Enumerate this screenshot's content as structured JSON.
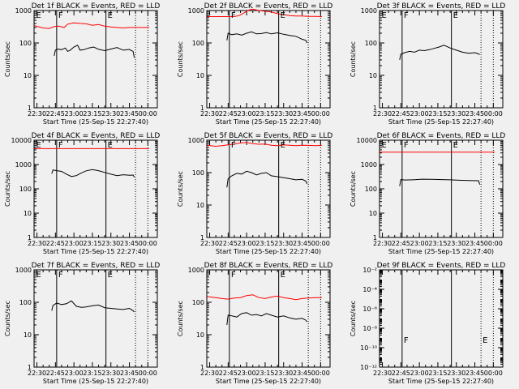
{
  "chart_data": [
    {
      "type": "line",
      "title": "Det 1f BLACK = Events, RED = LLD",
      "xlabel": "Start Time (25-Sep-15 22:27:40)",
      "ylabel": "Counts/sec",
      "x_ticks": [
        "22:30",
        "22:45",
        "23:00",
        "23:15",
        "23:30",
        "23:45",
        "00:00"
      ],
      "xlim": [
        -2.33,
        97.67
      ],
      "yscale": "log",
      "ylim": [
        1,
        1000
      ],
      "y_ticks": [
        {
          "v": 1,
          "t": "1"
        },
        {
          "v": 10,
          "t": "10"
        },
        {
          "v": 100,
          "t": "100"
        },
        {
          "v": 1000,
          "t": "1000"
        }
      ],
      "markers": [
        {
          "x": -2,
          "label": "E"
        },
        {
          "x": 16,
          "label": "F"
        },
        {
          "x": 56,
          "label": "E"
        }
      ],
      "dotted_lines": [
        80,
        90
      ],
      "series": [
        {
          "color": "#ff0000",
          "x": [
            -2,
            5,
            10,
            14,
            18,
            22,
            25,
            30,
            35,
            40,
            45,
            50,
            55,
            60,
            65,
            70,
            75,
            80,
            86,
            91
          ],
          "y": [
            340,
            290,
            280,
            320,
            330,
            300,
            380,
            420,
            400,
            390,
            350,
            370,
            330,
            310,
            300,
            290,
            300,
            300,
            300,
            300
          ]
        },
        {
          "color": "#000000",
          "x": [
            14,
            15,
            17,
            20,
            23,
            25,
            27,
            30,
            33,
            35,
            38,
            42,
            46,
            50,
            55,
            60,
            65,
            70,
            75,
            78,
            79
          ],
          "y": [
            40,
            60,
            65,
            62,
            70,
            55,
            60,
            75,
            85,
            60,
            62,
            70,
            75,
            64,
            58,
            65,
            72,
            60,
            63,
            55,
            35
          ]
        }
      ]
    },
    {
      "type": "line",
      "title": "Det 2f BLACK = Events, RED = LLD",
      "xlabel": "Start Time (25-Sep-15 22:27:40)",
      "ylabel": "Counts/sec",
      "x_ticks": [
        "22:30",
        "22:45",
        "23:00",
        "23:15",
        "23:30",
        "23:45",
        "00:00"
      ],
      "xlim": [
        -2.33,
        97.67
      ],
      "yscale": "log",
      "ylim": [
        1,
        1000
      ],
      "y_ticks": [
        {
          "v": 1,
          "t": "1"
        },
        {
          "v": 10,
          "t": "10"
        },
        {
          "v": 100,
          "t": "100"
        },
        {
          "v": 1000,
          "t": "1000"
        }
      ],
      "markers": [
        {
          "x": 16,
          "label": "F"
        },
        {
          "x": 56,
          "label": "E"
        }
      ],
      "dotted_lines": [
        80,
        90
      ],
      "series": [
        {
          "color": "#ff0000",
          "x": [
            -2,
            5,
            12,
            20,
            24,
            28,
            32,
            35,
            40,
            45,
            50,
            55,
            60,
            65,
            70,
            75,
            80,
            86,
            91
          ],
          "y": [
            650,
            650,
            650,
            650,
            700,
            850,
            1050,
            1100,
            1000,
            950,
            900,
            800,
            750,
            700,
            680,
            680,
            660,
            660,
            650
          ]
        },
        {
          "color": "#000000",
          "x": [
            14,
            15,
            18,
            22,
            26,
            30,
            34,
            38,
            42,
            46,
            50,
            55,
            60,
            65,
            70,
            75,
            78,
            79
          ],
          "y": [
            120,
            200,
            180,
            190,
            175,
            200,
            220,
            190,
            195,
            210,
            190,
            205,
            185,
            170,
            160,
            130,
            120,
            100
          ]
        }
      ]
    },
    {
      "type": "line",
      "title": "Det 3f BLACK = Events, RED = LLD",
      "xlabel": "Start Time (25-Sep-15 22:27:40)",
      "ylabel": "Counts/sec",
      "x_ticks": [
        "22:30",
        "22:45",
        "23:00",
        "23:15",
        "23:30",
        "23:45",
        "00:00"
      ],
      "xlim": [
        -2.33,
        97.67
      ],
      "yscale": "log",
      "ylim": [
        1,
        1000
      ],
      "y_ticks": [
        {
          "v": 1,
          "t": "1"
        },
        {
          "v": 10,
          "t": "10"
        },
        {
          "v": 100,
          "t": "100"
        },
        {
          "v": 1000,
          "t": "1000"
        }
      ],
      "markers": [
        {
          "x": -2,
          "label": "E"
        },
        {
          "x": 16,
          "label": "F"
        },
        {
          "x": 56,
          "label": "E"
        }
      ],
      "dotted_lines": [
        80,
        90
      ],
      "series": [
        {
          "color": "#000000",
          "x": [
            14,
            15,
            18,
            22,
            26,
            30,
            34,
            38,
            42,
            46,
            50,
            55,
            60,
            65,
            70,
            75,
            78,
            79
          ],
          "y": [
            30,
            45,
            50,
            55,
            52,
            60,
            58,
            62,
            68,
            75,
            85,
            70,
            60,
            52,
            48,
            50,
            46,
            44
          ]
        }
      ]
    },
    {
      "type": "line",
      "title": "Det 4f BLACK = Events, RED = LLD",
      "xlabel": "Start Time (25-Sep-15 22:27:40)",
      "ylabel": "Counts/sec",
      "x_ticks": [
        "22:30",
        "22:45",
        "23:00",
        "23:15",
        "23:30",
        "23:45",
        "00:00"
      ],
      "xlim": [
        -2.33,
        97.67
      ],
      "yscale": "log",
      "ylim": [
        1,
        10000
      ],
      "y_ticks": [
        {
          "v": 1,
          "t": "1"
        },
        {
          "v": 10,
          "t": "10"
        },
        {
          "v": 100,
          "t": "100"
        },
        {
          "v": 1000,
          "t": "1000"
        },
        {
          "v": 10000,
          "t": "10000"
        }
      ],
      "markers": [
        {
          "x": -2,
          "label": "E"
        },
        {
          "x": 16,
          "label": "F"
        },
        {
          "x": 56,
          "label": "E"
        }
      ],
      "dotted_lines": [
        80,
        90
      ],
      "series": [
        {
          "color": "#ff0000",
          "x": [
            -2,
            91
          ],
          "y": [
            4500,
            4500
          ]
        },
        {
          "color": "#000000",
          "x": [
            12,
            13,
            16,
            20,
            24,
            28,
            32,
            36,
            40,
            45,
            50,
            55,
            60,
            65,
            70,
            75,
            78,
            79
          ],
          "y": [
            420,
            600,
            560,
            520,
            400,
            320,
            350,
            450,
            550,
            620,
            560,
            470,
            400,
            350,
            380,
            360,
            370,
            300
          ]
        }
      ]
    },
    {
      "type": "line",
      "title": "Det 5f BLACK = Events, RED = LLD",
      "xlabel": "Start Time (25-Sep-15 22:27:40)",
      "ylabel": "Counts/sec",
      "x_ticks": [
        "22:30",
        "22:45",
        "23:00",
        "23:15",
        "23:30",
        "23:45",
        "00:00"
      ],
      "xlim": [
        -2.33,
        97.67
      ],
      "yscale": "log",
      "ylim": [
        1,
        1000
      ],
      "y_ticks": [
        {
          "v": 1,
          "t": "1"
        },
        {
          "v": 10,
          "t": "10"
        },
        {
          "v": 100,
          "t": "100"
        },
        {
          "v": 1000,
          "t": "1000"
        }
      ],
      "markers": [
        {
          "x": 16,
          "label": "F"
        },
        {
          "x": 56,
          "label": "E"
        }
      ],
      "dotted_lines": [
        80,
        90
      ],
      "series": [
        {
          "color": "#ff0000",
          "x": [
            -2,
            5,
            10,
            15,
            20,
            25,
            30,
            35,
            40,
            45,
            50,
            55,
            60,
            65,
            70,
            75,
            80,
            86,
            91
          ],
          "y": [
            700,
            650,
            680,
            720,
            760,
            820,
            850,
            780,
            750,
            760,
            700,
            680,
            720,
            700,
            680,
            700,
            690,
            680,
            690
          ]
        },
        {
          "color": "#000000",
          "x": [
            14,
            15,
            18,
            22,
            26,
            30,
            34,
            38,
            42,
            46,
            50,
            55,
            60,
            65,
            70,
            75,
            78,
            79
          ],
          "y": [
            35,
            65,
            80,
            95,
            90,
            110,
            100,
            85,
            95,
            100,
            80,
            75,
            70,
            65,
            60,
            62,
            55,
            45
          ]
        }
      ]
    },
    {
      "type": "line",
      "title": "Det 6f BLACK = Events, RED = LLD",
      "xlabel": "Start Time (25-Sep-15 22:27:40)",
      "ylabel": "Counts/sec",
      "x_ticks": [
        "22:30",
        "22:45",
        "23:00",
        "23:15",
        "23:30",
        "23:45",
        "00:00"
      ],
      "xlim": [
        -2.33,
        97.67
      ],
      "yscale": "log",
      "ylim": [
        1,
        10000
      ],
      "y_ticks": [
        {
          "v": 1,
          "t": "1"
        },
        {
          "v": 10,
          "t": "10"
        },
        {
          "v": 100,
          "t": "100"
        },
        {
          "v": 1000,
          "t": "1000"
        },
        {
          "v": 10000,
          "t": "10000"
        }
      ],
      "markers": [
        {
          "x": -2,
          "label": "E"
        },
        {
          "x": 16,
          "label": "F"
        },
        {
          "x": 56,
          "label": "E"
        }
      ],
      "dotted_lines": [
        80,
        90
      ],
      "series": [
        {
          "color": "#ff0000",
          "x": [
            -2,
            91
          ],
          "y": [
            3200,
            3200
          ]
        },
        {
          "color": "#000000",
          "x": [
            14,
            15,
            18,
            25,
            32,
            40,
            48,
            55,
            62,
            70,
            78,
            79
          ],
          "y": [
            130,
            240,
            230,
            235,
            250,
            245,
            240,
            235,
            225,
            220,
            215,
            150
          ]
        }
      ]
    },
    {
      "type": "line",
      "title": "Det 7f BLACK = Events, RED = LLD",
      "xlabel": "Start Time (25-Sep-15 22:27:40)",
      "ylabel": "Counts/sec",
      "x_ticks": [
        "22:30",
        "22:45",
        "23:00",
        "23:15",
        "23:30",
        "23:45",
        "00:00"
      ],
      "xlim": [
        -2.33,
        97.67
      ],
      "yscale": "log",
      "ylim": [
        1,
        1000
      ],
      "y_ticks": [
        {
          "v": 1,
          "t": "1"
        },
        {
          "v": 10,
          "t": "10"
        },
        {
          "v": 100,
          "t": "100"
        },
        {
          "v": 1000,
          "t": "1000"
        }
      ],
      "markers": [
        {
          "x": -2,
          "label": "E"
        },
        {
          "x": 16,
          "label": "F"
        },
        {
          "x": 56,
          "label": "E"
        }
      ],
      "dotted_lines": [
        80,
        90
      ],
      "series": [
        {
          "color": "#000000",
          "x": [
            12,
            13,
            16,
            20,
            24,
            28,
            32,
            36,
            40,
            45,
            50,
            55,
            60,
            65,
            70,
            75,
            78,
            79
          ],
          "y": [
            55,
            80,
            95,
            85,
            90,
            110,
            75,
            70,
            72,
            78,
            82,
            68,
            65,
            62,
            60,
            65,
            55,
            50
          ]
        }
      ]
    },
    {
      "type": "line",
      "title": "Det 8f BLACK = Events, RED = LLD",
      "xlabel": "Start Time (25-Sep-15 22:27:40)",
      "ylabel": "Counts/sec",
      "x_ticks": [
        "22:30",
        "22:45",
        "23:00",
        "23:15",
        "23:30",
        "23:45",
        "00:00"
      ],
      "xlim": [
        -2.33,
        97.67
      ],
      "yscale": "log",
      "ylim": [
        1,
        1000
      ],
      "y_ticks": [
        {
          "v": 1,
          "t": "1"
        },
        {
          "v": 10,
          "t": "10"
        },
        {
          "v": 100,
          "t": "100"
        },
        {
          "v": 1000,
          "t": "1000"
        }
      ],
      "markers": [
        {
          "x": 16,
          "label": "F"
        },
        {
          "x": 56,
          "label": "E"
        }
      ],
      "dotted_lines": [
        80,
        90
      ],
      "series": [
        {
          "color": "#ff0000",
          "x": [
            -2,
            5,
            10,
            15,
            20,
            25,
            30,
            35,
            40,
            45,
            50,
            55,
            60,
            65,
            70,
            75,
            80,
            86,
            91
          ],
          "y": [
            150,
            140,
            130,
            125,
            135,
            140,
            160,
            170,
            140,
            130,
            145,
            155,
            140,
            130,
            120,
            130,
            135,
            140,
            140
          ]
        },
        {
          "color": "#000000",
          "x": [
            14,
            15,
            18,
            22,
            26,
            30,
            34,
            38,
            42,
            46,
            50,
            55,
            60,
            65,
            70,
            75,
            78,
            79
          ],
          "y": [
            20,
            40,
            38,
            35,
            45,
            48,
            40,
            42,
            38,
            45,
            40,
            35,
            38,
            33,
            30,
            32,
            28,
            25
          ]
        }
      ]
    },
    {
      "type": "line",
      "title": "Det 9f BLACK = Events, RED = LLD",
      "xlabel": "Start Time (25-Sep-15 22:27:40)",
      "ylabel": "Counts/sec",
      "x_ticks": [
        "22:30",
        "22:45",
        "23:00",
        "23:15",
        "23:30",
        "23:45",
        "00:00"
      ],
      "xlim": [
        -2.33,
        97.67
      ],
      "yscale": "log",
      "ylim": [
        1e-12,
        0.01
      ],
      "y_ticks": [
        {
          "v": 1e-12,
          "t": "10⁻¹²"
        },
        {
          "v": 1e-10,
          "t": "10⁻¹⁰"
        },
        {
          "v": 1e-08,
          "t": "10⁻⁸"
        },
        {
          "v": 1e-06,
          "t": "10⁻⁶"
        },
        {
          "v": 0.0001,
          "t": "10⁻⁴"
        },
        {
          "v": 0.01,
          "t": "10⁻²"
        }
      ],
      "markers": [
        {
          "x": 16,
          "label": "F"
        },
        {
          "x": 80,
          "label": "E"
        }
      ],
      "dotted_lines": [
        80,
        90
      ],
      "series": []
    }
  ]
}
